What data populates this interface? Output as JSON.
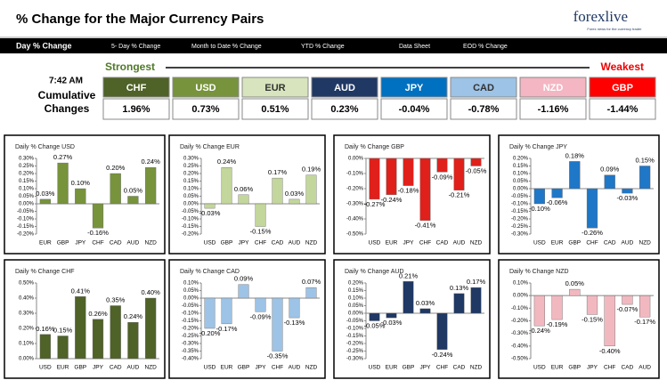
{
  "header": {
    "title": "% Change for the Major Currency Pairs",
    "logo": "forexlive",
    "logo_sub": "Forex news for the currency trader"
  },
  "tabs": [
    "Day % Change",
    "5- Day % Change",
    "Month to Date % Change",
    "YTD % Change",
    "Data Sheet",
    "EOD % Change"
  ],
  "time": "7:42 AM",
  "strongest": "Strongest",
  "weakest": "Weakest",
  "cumulative_label": "Cumulative Changes",
  "currencies": [
    {
      "name": "CHF",
      "value": "1.96%",
      "color": "#4f6228",
      "text_color": "#ffffff"
    },
    {
      "name": "USD",
      "value": "0.73%",
      "color": "#77933c",
      "text_color": "#ffffff"
    },
    {
      "name": "EUR",
      "value": "0.51%",
      "color": "#d7e4bd",
      "text_color": "#333333"
    },
    {
      "name": "AUD",
      "value": "0.23%",
      "color": "#1f3864",
      "text_color": "#ffffff"
    },
    {
      "name": "JPY",
      "value": "-0.04%",
      "color": "#0070c0",
      "text_color": "#ffffff"
    },
    {
      "name": "CAD",
      "value": "-0.78%",
      "color": "#9dc3e6",
      "text_color": "#333333"
    },
    {
      "name": "NZD",
      "value": "-1.16%",
      "color": "#f4b6c2",
      "text_color": "#ffffff"
    },
    {
      "name": "GBP",
      "value": "-1.44%",
      "color": "#ff0000",
      "text_color": "#ffffff"
    }
  ],
  "chart_data": [
    {
      "type": "bar",
      "title": "Daily % Change USD",
      "color": "#77933c",
      "categories": [
        "EUR",
        "GBP",
        "JPY",
        "CHF",
        "CAD",
        "AUD",
        "NZD"
      ],
      "values": [
        0.03,
        0.27,
        0.1,
        -0.16,
        0.2,
        0.05,
        0.24
      ],
      "value_labels": [
        "0.03%",
        "0.27%",
        "0.10%",
        "-0.16%",
        "0.20%",
        "0.05%",
        "0.24%"
      ],
      "ylim": [
        -0.2,
        0.3
      ],
      "yticks": [
        {
          "value": -0.2,
          "label": "-0.20%"
        },
        {
          "value": -0.15,
          "label": "-0.15%"
        },
        {
          "value": -0.1,
          "label": "-0.10%"
        },
        {
          "value": -0.05,
          "label": "-0.05%"
        },
        {
          "value": 0,
          "label": "0.00%"
        },
        {
          "value": 0.05,
          "label": "0.05%"
        },
        {
          "value": 0.1,
          "label": "0.10%"
        },
        {
          "value": 0.15,
          "label": "0.15%"
        },
        {
          "value": 0.2,
          "label": "0.20%"
        },
        {
          "value": 0.25,
          "label": "0.25%"
        },
        {
          "value": 0.3,
          "label": "0.30%"
        }
      ]
    },
    {
      "type": "bar",
      "title": "Daily % Change EUR",
      "color": "#c3d69b",
      "categories": [
        "USD",
        "GBP",
        "JPY",
        "CHF",
        "CAD",
        "AUD",
        "NZD"
      ],
      "values": [
        -0.03,
        0.24,
        0.06,
        -0.15,
        0.17,
        0.03,
        0.19
      ],
      "value_labels": [
        "-0.03%",
        "0.24%",
        "0.06%",
        "-0.15%",
        "0.17%",
        "0.03%",
        "0.19%"
      ],
      "ylim": [
        -0.2,
        0.3
      ],
      "yticks": [
        {
          "value": -0.2,
          "label": "-0.20%"
        },
        {
          "value": -0.15,
          "label": "-0.15%"
        },
        {
          "value": -0.1,
          "label": "-0.10%"
        },
        {
          "value": -0.05,
          "label": "-0.05%"
        },
        {
          "value": 0,
          "label": "0.00%"
        },
        {
          "value": 0.05,
          "label": "0.05%"
        },
        {
          "value": 0.1,
          "label": "0.10%"
        },
        {
          "value": 0.15,
          "label": "0.15%"
        },
        {
          "value": 0.2,
          "label": "0.20%"
        },
        {
          "value": 0.25,
          "label": "0.25%"
        },
        {
          "value": 0.3,
          "label": "0.30%"
        }
      ]
    },
    {
      "type": "bar",
      "title": "Daily % Change GBP",
      "color": "#e0201b",
      "categories": [
        "USD",
        "EUR",
        "JPY",
        "CHF",
        "CAD",
        "AUD",
        "NZD"
      ],
      "values": [
        -0.27,
        -0.24,
        -0.18,
        -0.41,
        -0.09,
        -0.21,
        -0.05
      ],
      "value_labels": [
        "-0.27%",
        "-0.24%",
        "-0.18%",
        "-0.41%",
        "-0.09%",
        "-0.21%",
        "-0.05%"
      ],
      "ylim": [
        -0.5,
        0
      ],
      "yticks": [
        {
          "value": -0.5,
          "label": "-0.50%"
        },
        {
          "value": -0.4,
          "label": "-0.40%"
        },
        {
          "value": -0.3,
          "label": "-0.30%"
        },
        {
          "value": -0.2,
          "label": "-0.20%"
        },
        {
          "value": -0.1,
          "label": "-0.10%"
        },
        {
          "value": 0,
          "label": "0.00%"
        }
      ]
    },
    {
      "type": "bar",
      "title": "Daily % Change JPY",
      "color": "#1f77c8",
      "categories": [
        "USD",
        "EUR",
        "GBP",
        "CHF",
        "CAD",
        "AUD",
        "NZD"
      ],
      "values": [
        -0.1,
        -0.06,
        0.18,
        -0.26,
        0.09,
        -0.03,
        0.15
      ],
      "value_labels": [
        "-0.10%",
        "-0.06%",
        "0.18%",
        "-0.26%",
        "0.09%",
        "-0.03%",
        "0.15%"
      ],
      "ylim": [
        -0.3,
        0.2
      ],
      "yticks": [
        {
          "value": -0.3,
          "label": "-0.30%"
        },
        {
          "value": -0.25,
          "label": "-0.25%"
        },
        {
          "value": -0.2,
          "label": "-0.20%"
        },
        {
          "value": -0.15,
          "label": "-0.15%"
        },
        {
          "value": -0.1,
          "label": "-0.10%"
        },
        {
          "value": -0.05,
          "label": "-0.05%"
        },
        {
          "value": 0,
          "label": "0.00%"
        },
        {
          "value": 0.05,
          "label": "0.05%"
        },
        {
          "value": 0.1,
          "label": "0.10%"
        },
        {
          "value": 0.15,
          "label": "0.15%"
        },
        {
          "value": 0.2,
          "label": "0.20%"
        }
      ]
    },
    {
      "type": "bar",
      "title": "Daily % Change CHF",
      "color": "#4f6228",
      "categories": [
        "USD",
        "EUR",
        "GBP",
        "JPY",
        "CAD",
        "AUD",
        "NZD"
      ],
      "values": [
        0.16,
        0.15,
        0.41,
        0.26,
        0.35,
        0.24,
        0.4
      ],
      "value_labels": [
        "0.16%",
        "0.15%",
        "0.41%",
        "0.26%",
        "0.35%",
        "0.24%",
        "0.40%"
      ],
      "ylim": [
        0,
        0.5
      ],
      "yticks": [
        {
          "value": 0,
          "label": "0.00%"
        },
        {
          "value": 0.1,
          "label": "0.10%"
        },
        {
          "value": 0.2,
          "label": "0.20%"
        },
        {
          "value": 0.3,
          "label": "0.30%"
        },
        {
          "value": 0.4,
          "label": "0.40%"
        },
        {
          "value": 0.5,
          "label": "0.50%"
        }
      ]
    },
    {
      "type": "bar",
      "title": "Daily % Change CAD",
      "color": "#9dc3e6",
      "categories": [
        "USD",
        "EUR",
        "GBP",
        "JPY",
        "CHF",
        "AUD",
        "NZD"
      ],
      "values": [
        -0.2,
        -0.17,
        0.09,
        -0.09,
        -0.35,
        -0.13,
        0.07
      ],
      "value_labels": [
        "-0.20%",
        "-0.17%",
        "0.09%",
        "-0.09%",
        "-0.35%",
        "-0.13%",
        "0.07%"
      ],
      "ylim": [
        -0.4,
        0.1
      ],
      "yticks": [
        {
          "value": -0.4,
          "label": "-0.40%"
        },
        {
          "value": -0.35,
          "label": "-0.35%"
        },
        {
          "value": -0.3,
          "label": "-0.30%"
        },
        {
          "value": -0.25,
          "label": "-0.25%"
        },
        {
          "value": -0.2,
          "label": "-0.20%"
        },
        {
          "value": -0.15,
          "label": "-0.15%"
        },
        {
          "value": -0.1,
          "label": "-0.10%"
        },
        {
          "value": -0.05,
          "label": "-0.05%"
        },
        {
          "value": 0,
          "label": "0.00%"
        },
        {
          "value": 0.05,
          "label": "0.05%"
        },
        {
          "value": 0.1,
          "label": "0.10%"
        }
      ]
    },
    {
      "type": "bar",
      "title": "Daily % Change AUD",
      "color": "#1f3864",
      "categories": [
        "USD",
        "EUR",
        "GBP",
        "JPY",
        "CHF",
        "CAD",
        "NZD"
      ],
      "values": [
        -0.05,
        -0.03,
        0.21,
        0.03,
        -0.24,
        0.13,
        0.17
      ],
      "value_labels": [
        "-0.05%",
        "-0.03%",
        "0.21%",
        "0.03%",
        "-0.24%",
        "0.13%",
        "0.17%"
      ],
      "ylim": [
        -0.3,
        0.2
      ],
      "yticks": [
        {
          "value": -0.3,
          "label": "-0.30%"
        },
        {
          "value": -0.25,
          "label": "-0.25%"
        },
        {
          "value": -0.2,
          "label": "-0.20%"
        },
        {
          "value": -0.15,
          "label": "-0.15%"
        },
        {
          "value": -0.1,
          "label": "-0.10%"
        },
        {
          "value": -0.05,
          "label": "-0.05%"
        },
        {
          "value": 0,
          "label": "0.00%"
        },
        {
          "value": 0.05,
          "label": "0.05%"
        },
        {
          "value": 0.1,
          "label": "0.10%"
        },
        {
          "value": 0.15,
          "label": "0.15%"
        },
        {
          "value": 0.2,
          "label": "0.20%"
        }
      ]
    },
    {
      "type": "bar",
      "title": "Daily % Change NZD",
      "color": "#f2b8c0",
      "categories": [
        "USD",
        "EUR",
        "GBP",
        "JPY",
        "CHF",
        "CAD",
        "AUD"
      ],
      "values": [
        -0.24,
        -0.19,
        0.05,
        -0.15,
        -0.4,
        -0.07,
        -0.17
      ],
      "value_labels": [
        "-0.24%",
        "-0.19%",
        "0.05%",
        "-0.15%",
        "-0.40%",
        "-0.07%",
        "-0.17%"
      ],
      "ylim": [
        -0.5,
        0.1
      ],
      "yticks": [
        {
          "value": -0.5,
          "label": "-0.50%"
        },
        {
          "value": -0.4,
          "label": "-0.40%"
        },
        {
          "value": -0.3,
          "label": "-0.30%"
        },
        {
          "value": -0.2,
          "label": "-0.20%"
        },
        {
          "value": -0.1,
          "label": "-0.10%"
        },
        {
          "value": 0,
          "label": "0.00%"
        },
        {
          "value": 0.1,
          "label": "0.10%"
        }
      ]
    }
  ]
}
